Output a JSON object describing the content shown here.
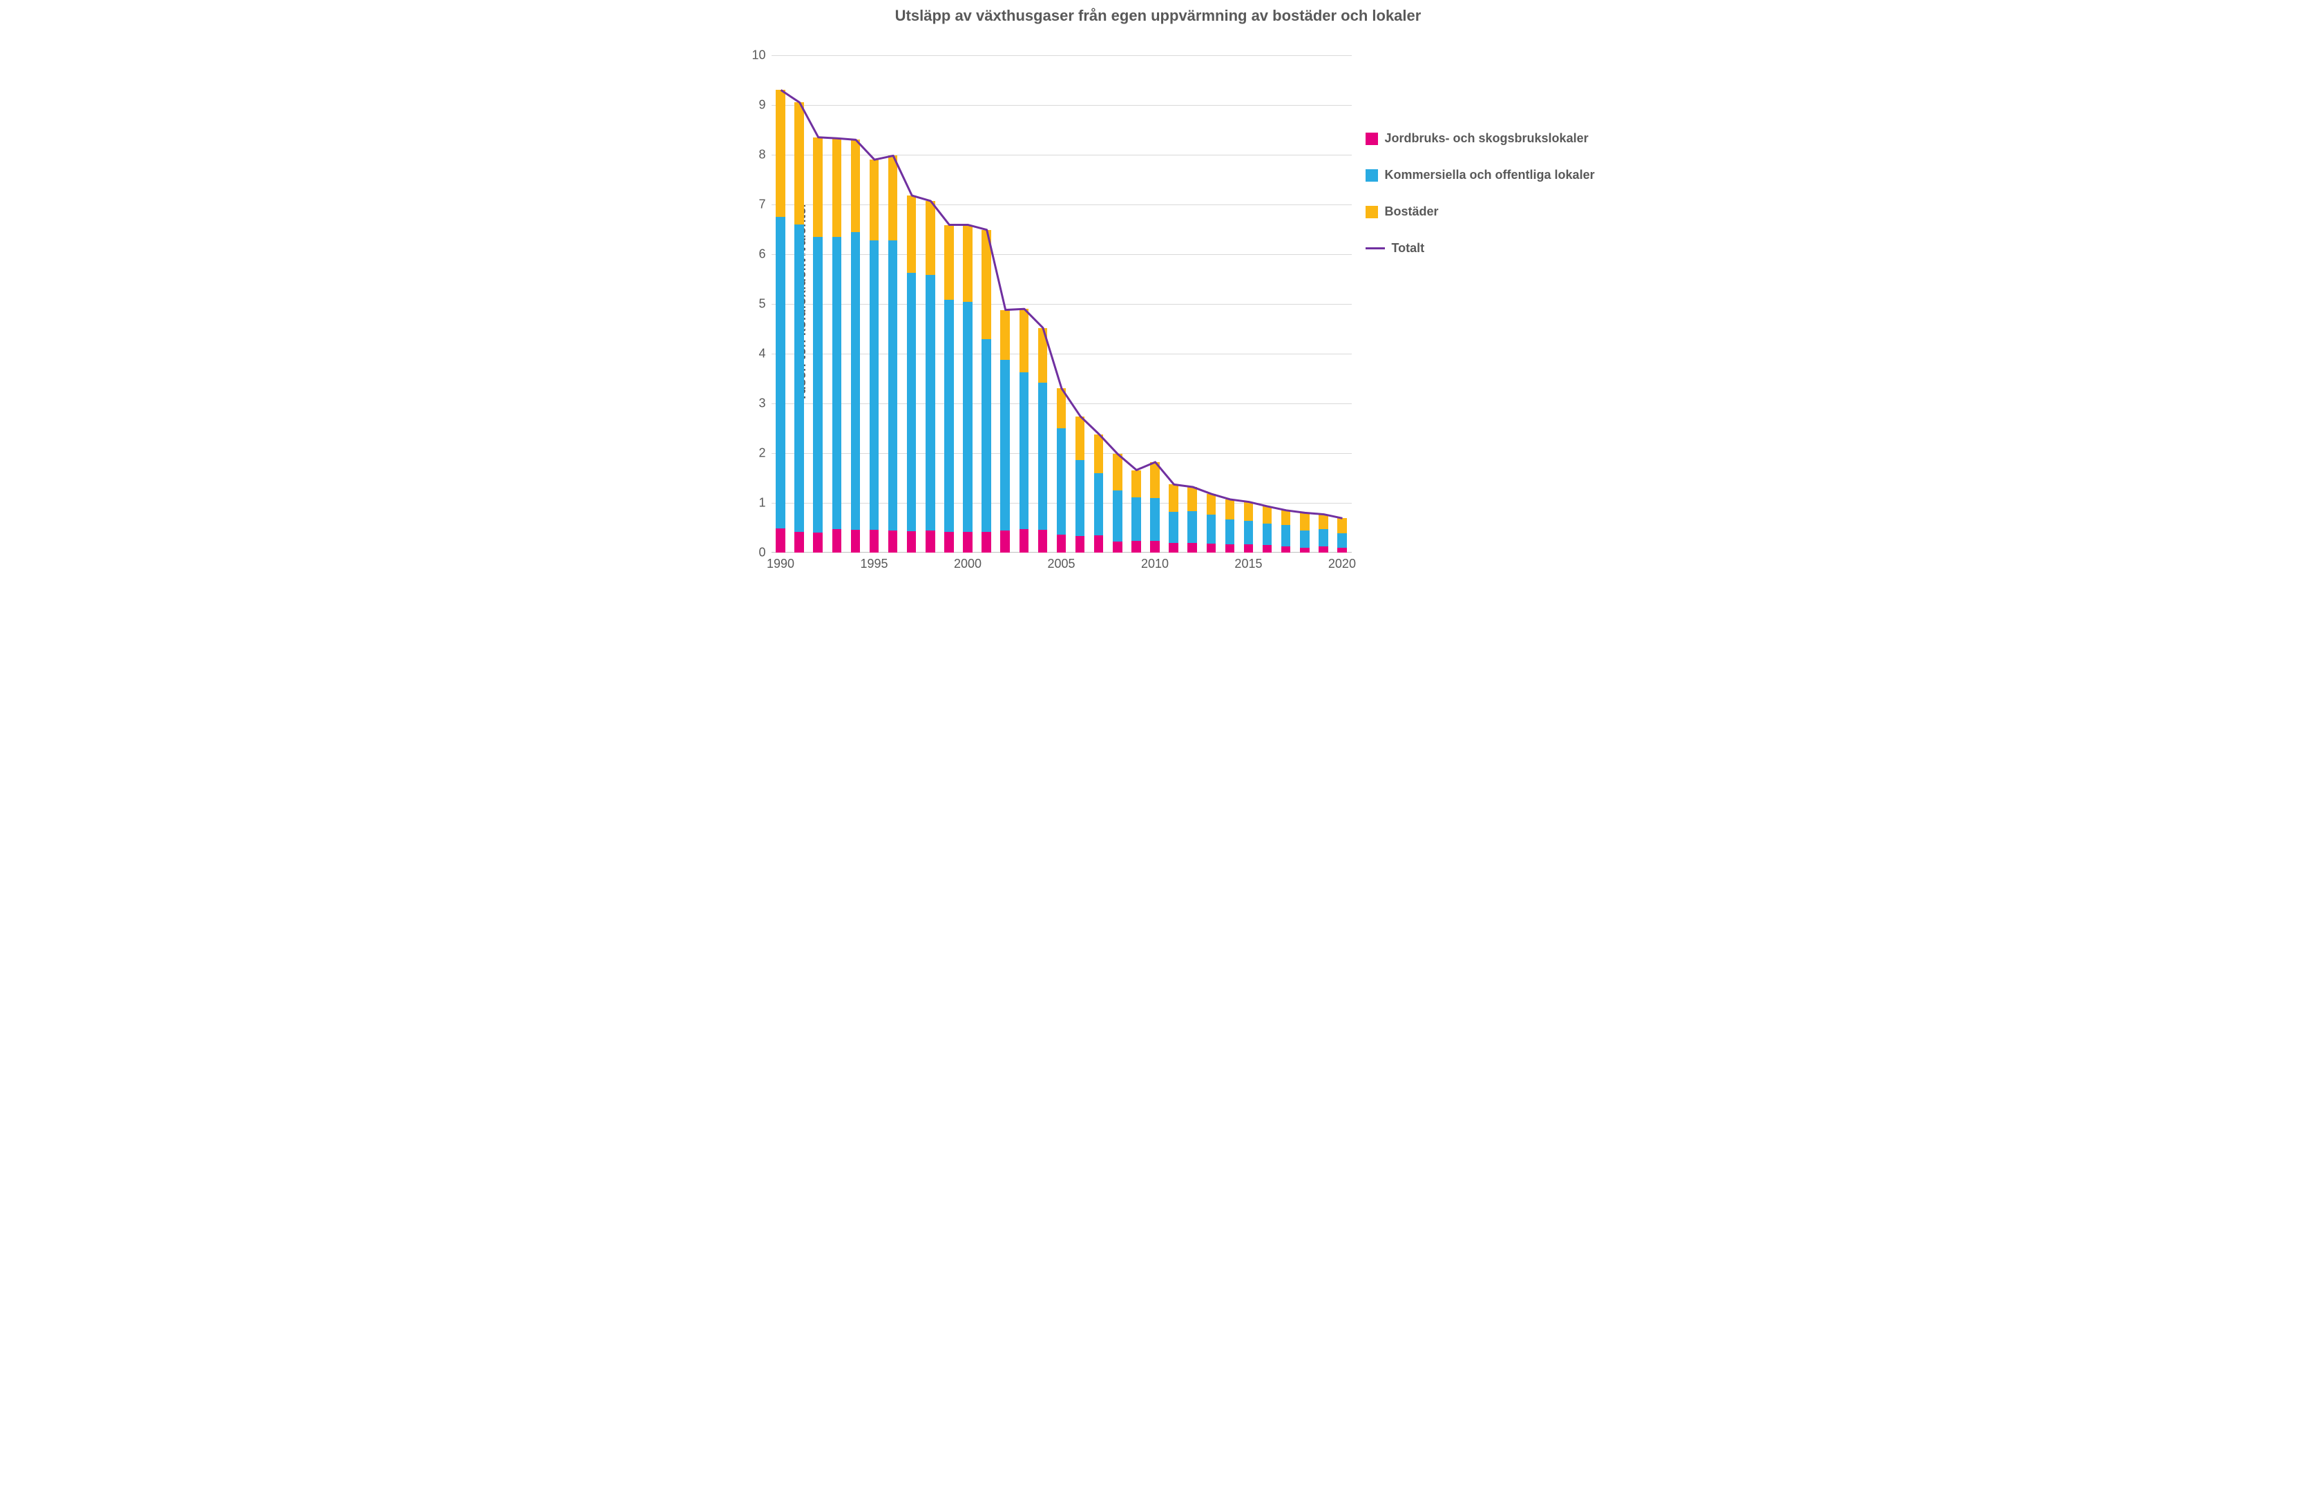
{
  "chart": {
    "type": "stacked-bar-with-line",
    "title": "Utsläpp av växthusgaser från egen uppvärmning av bostäder och lokaler",
    "title_fontsize": 22,
    "title_color": "#595959",
    "ylabel": "Tusen ton koldioxidekvivalenter",
    "ylabel_fontsize": 19,
    "background_color": "#ffffff",
    "grid_color": "#d9d9d9",
    "axis_color": "#bfbfbf",
    "tick_color": "#595959",
    "tick_fontsize": 18,
    "ylim": [
      0,
      10
    ],
    "ytick_step": 1,
    "years": [
      1990,
      1991,
      1992,
      1993,
      1994,
      1995,
      1996,
      1997,
      1998,
      1999,
      2000,
      2001,
      2002,
      2003,
      2004,
      2005,
      2006,
      2007,
      2008,
      2009,
      2010,
      2011,
      2012,
      2013,
      2014,
      2015,
      2016,
      2017,
      2018,
      2019,
      2020
    ],
    "xticks": [
      1990,
      1995,
      2000,
      2005,
      2010,
      2015,
      2020
    ],
    "bar_width_ratio": 0.5,
    "series": [
      {
        "key": "jordbruk",
        "label": "Jordbruks- och skogsbrukslokaler",
        "color": "#e6007e",
        "values": [
          0.48,
          0.42,
          0.4,
          0.47,
          0.46,
          0.46,
          0.45,
          0.43,
          0.44,
          0.42,
          0.42,
          0.41,
          0.45,
          0.47,
          0.46,
          0.36,
          0.33,
          0.35,
          0.22,
          0.24,
          0.23,
          0.2,
          0.19,
          0.18,
          0.17,
          0.16,
          0.15,
          0.13,
          0.1,
          0.12,
          0.1
        ]
      },
      {
        "key": "kommersiella",
        "label": "Kommersiella och offentliga lokaler",
        "color": "#29abe2",
        "values": [
          6.27,
          6.18,
          5.95,
          5.88,
          5.98,
          5.82,
          5.83,
          5.2,
          5.15,
          4.67,
          4.62,
          3.88,
          3.43,
          3.15,
          2.96,
          2.14,
          1.53,
          1.25,
          1.03,
          0.87,
          0.87,
          0.62,
          0.65,
          0.58,
          0.5,
          0.48,
          0.43,
          0.42,
          0.35,
          0.35,
          0.29
        ]
      },
      {
        "key": "bostader",
        "label": "Bostäder",
        "color": "#fbb613",
        "values": [
          2.55,
          2.45,
          2.0,
          1.98,
          1.86,
          1.62,
          1.7,
          1.55,
          1.48,
          1.5,
          1.55,
          2.2,
          1.0,
          1.28,
          1.1,
          0.8,
          0.88,
          0.78,
          0.73,
          0.55,
          0.72,
          0.55,
          0.48,
          0.42,
          0.4,
          0.38,
          0.35,
          0.3,
          0.35,
          0.3,
          0.3
        ]
      }
    ],
    "total_line": {
      "label": "Totalt",
      "color": "#7030a0",
      "width": 3,
      "values": [
        9.3,
        9.05,
        8.35,
        8.33,
        8.3,
        7.9,
        7.98,
        7.18,
        7.07,
        6.59,
        6.59,
        6.49,
        4.88,
        4.9,
        4.52,
        3.3,
        2.74,
        2.38,
        1.98,
        1.66,
        1.82,
        1.37,
        1.32,
        1.18,
        1.07,
        1.02,
        0.93,
        0.85,
        0.8,
        0.77,
        0.69
      ]
    },
    "legend_fontsize": 18,
    "legend_color": "#595959"
  }
}
